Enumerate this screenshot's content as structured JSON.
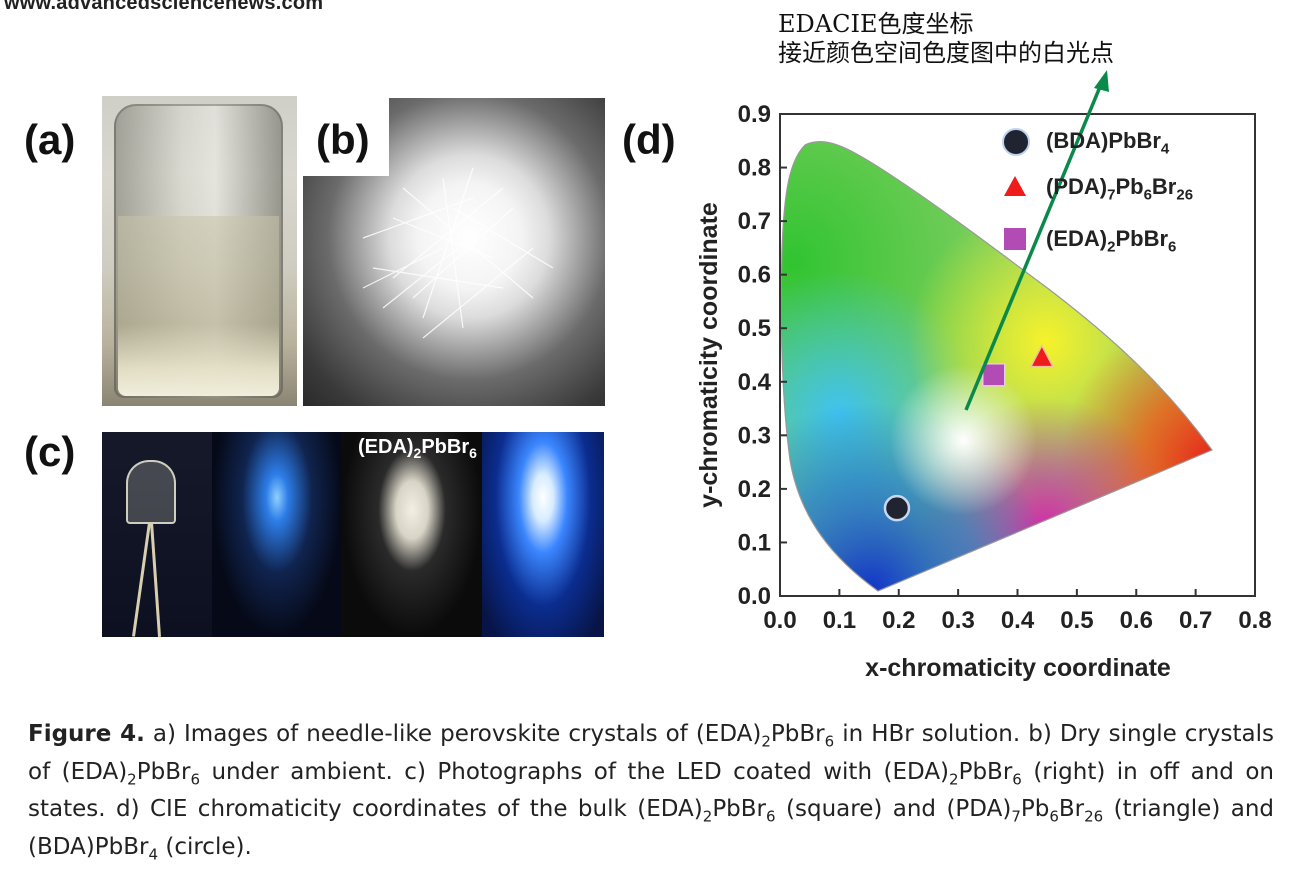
{
  "site_url": "www.advancedsciencenews.com",
  "annotation": {
    "line1": "EDACIE色度坐标",
    "line2": "接近颜色空间色度图中的白光点"
  },
  "panels": {
    "a": "(a)",
    "b": "(b)",
    "c": "(c)",
    "d": "(d)"
  },
  "photo_c_title": {
    "pre": "(EDA)",
    "s1": "2",
    "mid": "PbBr",
    "s2": "6"
  },
  "chart_data": {
    "type": "scatter",
    "xlabel": "x-chromaticity coordinate",
    "ylabel": "y-chromaticity coordinate",
    "xlim": [
      0.0,
      0.8
    ],
    "ylim": [
      0.0,
      0.9
    ],
    "xticks": [
      "0.0",
      "0.1",
      "0.2",
      "0.3",
      "0.4",
      "0.5",
      "0.6",
      "0.7",
      "0.8"
    ],
    "yticks": [
      "0.0",
      "0.1",
      "0.2",
      "0.3",
      "0.4",
      "0.5",
      "0.6",
      "0.7",
      "0.8",
      "0.9"
    ],
    "series": [
      {
        "name": "(BDA)PbBr4",
        "marker": "circle",
        "color": "#1f2430",
        "x": 0.197,
        "y": 0.164
      },
      {
        "name": "(PDA)7Pb6Br26",
        "marker": "triangle",
        "color": "#ef1c1c",
        "x": 0.441,
        "y": 0.445
      },
      {
        "name": "(EDA)2PbBr6",
        "marker": "square",
        "color": "#b24bb3",
        "x": 0.36,
        "y": 0.413
      }
    ],
    "legend": [
      {
        "pre": "(BDA)",
        "s1": "",
        "mid": "PbBr",
        "s2": "4",
        "post": "",
        "s3": ""
      },
      {
        "pre": "(PDA)",
        "s1": "7",
        "mid": "Pb",
        "s2": "6",
        "post": "Br",
        "s3": "26"
      },
      {
        "pre": "(EDA)",
        "s1": "2",
        "mid": "PbBr",
        "s2": "6",
        "post": "",
        "s3": ""
      }
    ],
    "legend_position": "top-right",
    "grid": false,
    "annotation_arrow_color": "#0a8a4a"
  },
  "caption": {
    "label": "Figure 4.",
    "t1": " a) Images of needle-like perovskite crystals of (EDA)",
    "s1": "2",
    "t2": "PbBr",
    "s2": "6",
    "t3": " in HBr solution. b) Dry single crystals of (EDA)",
    "s3": "2",
    "t4": "PbBr",
    "s4": "6",
    "t5": " under ambient. c) Photographs of the LED coated with (EDA)",
    "s5": "2",
    "t6": "PbBr",
    "s6": "6",
    "t7": " (right) in off and on states. d) CIE chromaticity coordinates of the bulk (EDA)",
    "s7": "2",
    "t8": "PbBr",
    "s8": "6",
    "t9": " (square) and (PDA)",
    "s9": "7",
    "t10": "Pb",
    "s10": "6",
    "t11": "Br",
    "s11": "26",
    "t12": " (triangle) and (BDA)PbBr",
    "s12": "4",
    "t13": " (circle)."
  }
}
